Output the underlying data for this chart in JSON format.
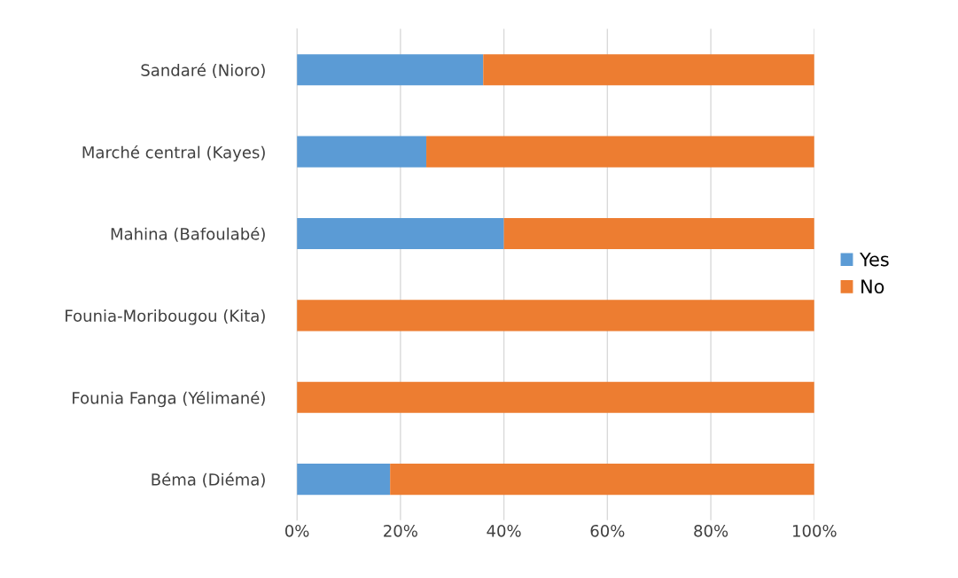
{
  "chart_data": {
    "type": "bar",
    "orientation": "horizontal",
    "stacked": true,
    "categories": [
      "Sandaré (Nioro)",
      "Marché central (Kayes)",
      "Mahina (Bafoulabé)",
      "Founia-Moribougou (Kita)",
      "Founia Fanga (Yélimané)",
      "Béma (Diéma)"
    ],
    "series": [
      {
        "name": "Yes",
        "color": "#5b9bd5",
        "values": [
          36,
          25,
          40,
          0,
          0,
          18
        ]
      },
      {
        "name": "No",
        "color": "#ed7d31",
        "values": [
          64,
          75,
          60,
          100,
          100,
          82
        ]
      }
    ],
    "xlim": [
      0,
      100
    ],
    "xticks": [
      {
        "value": 0,
        "label": "0%"
      },
      {
        "value": 20,
        "label": "20%"
      },
      {
        "value": 40,
        "label": "40%"
      },
      {
        "value": 60,
        "label": "60%"
      },
      {
        "value": 80,
        "label": "80%"
      },
      {
        "value": 100,
        "label": "100%"
      }
    ],
    "grid": "x",
    "legend": "right"
  }
}
